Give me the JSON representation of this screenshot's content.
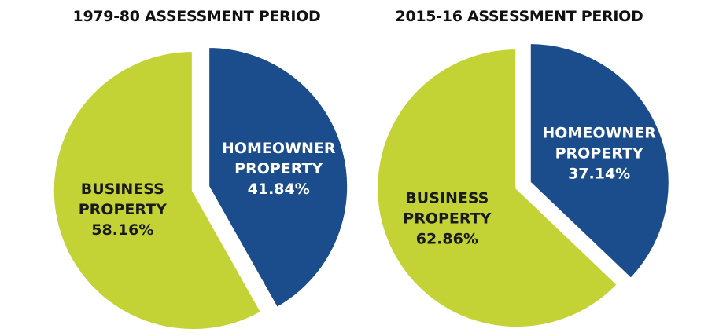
{
  "chart_data": [
    {
      "type": "pie",
      "title": "1979-80 ASSESSMENT PERIOD",
      "slices": [
        {
          "label_lines": [
            "HOMEOWNER",
            "PROPERTY"
          ],
          "value_label": "41.84%",
          "value": 41.84,
          "color": "#1b4d8c",
          "text_color": "#ffffff"
        },
        {
          "label_lines": [
            "BUSINESS",
            "PROPERTY"
          ],
          "value_label": "58.16%",
          "value": 58.16,
          "color": "#c3d335",
          "text_color": "#1a1a1a"
        }
      ]
    },
    {
      "type": "pie",
      "title": "2015-16 ASSESSMENT PERIOD",
      "slices": [
        {
          "label_lines": [
            "HOMEOWNER",
            "PROPERTY"
          ],
          "value_label": "37.14%",
          "value": 37.14,
          "color": "#1b4d8c",
          "text_color": "#ffffff"
        },
        {
          "label_lines": [
            "BUSINESS",
            "PROPERTY"
          ],
          "value_label": "62.86%",
          "value": 62.86,
          "color": "#c3d335",
          "text_color": "#1a1a1a"
        }
      ]
    }
  ]
}
